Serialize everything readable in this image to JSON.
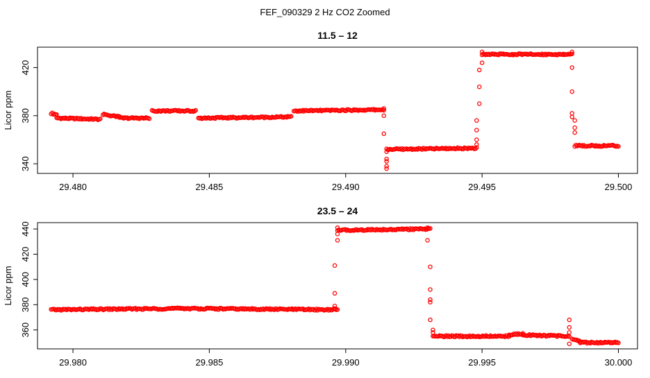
{
  "figure_title": "FEF_090329  2 Hz CO2 Zoomed",
  "colors": {
    "points": "#ff0000",
    "axis": "#000000",
    "background": "#ffffff"
  },
  "chart_data": [
    {
      "type": "scatter",
      "title": "11.5 – 12",
      "xlabel": "",
      "ylabel": "Licor ppm",
      "xlim": [
        29.4787,
        29.5007
      ],
      "ylim": [
        332,
        437
      ],
      "grid": false,
      "legend": "none",
      "xticks": [
        29.48,
        29.485,
        29.49,
        29.495,
        29.5
      ],
      "xtick_labels": [
        "29.480",
        "29.485",
        "29.490",
        "29.495",
        "29.500"
      ],
      "yticks": [
        340,
        380,
        420
      ],
      "ytick_labels": [
        "340",
        "380",
        "420"
      ],
      "segments": [
        {
          "x0": 29.4792,
          "x1": 29.4794,
          "y0": 382,
          "y1": 381
        },
        {
          "x0": 29.4794,
          "x1": 29.481,
          "y0": 378,
          "y1": 377
        },
        {
          "x0": 29.4811,
          "x1": 29.4817,
          "y0": 381,
          "y1": 379
        },
        {
          "x0": 29.4817,
          "x1": 29.4828,
          "y0": 378,
          "y1": 378
        },
        {
          "x0": 29.4829,
          "x1": 29.4845,
          "y0": 384,
          "y1": 384
        },
        {
          "x0": 29.4846,
          "x1": 29.488,
          "y0": 378,
          "y1": 379
        },
        {
          "x0": 29.4881,
          "x1": 29.4914,
          "y0": 384,
          "y1": 385
        },
        {
          "x0": 29.4915,
          "x1": 29.4948,
          "y0": 352,
          "y1": 353
        },
        {
          "x0": 29.495,
          "x1": 29.4983,
          "y0": 431,
          "y1": 431
        },
        {
          "x0": 29.4984,
          "x1": 29.5,
          "y0": 355,
          "y1": 355
        }
      ],
      "points": [
        [
          29.4914,
          386
        ],
        [
          29.4914,
          380
        ],
        [
          29.4914,
          365
        ],
        [
          29.4915,
          344
        ],
        [
          29.4915,
          336
        ],
        [
          29.4915,
          338
        ],
        [
          29.4915,
          342
        ],
        [
          29.4915,
          350
        ],
        [
          29.4948,
          356
        ],
        [
          29.4948,
          360
        ],
        [
          29.4948,
          368
        ],
        [
          29.4948,
          376
        ],
        [
          29.4949,
          390
        ],
        [
          29.4949,
          404
        ],
        [
          29.4949,
          418
        ],
        [
          29.495,
          424
        ],
        [
          29.495,
          433
        ],
        [
          29.4983,
          433
        ],
        [
          29.4983,
          420
        ],
        [
          29.4983,
          400
        ],
        [
          29.4983,
          382
        ],
        [
          29.4983,
          379
        ],
        [
          29.4984,
          376
        ],
        [
          29.4984,
          370
        ],
        [
          29.4984,
          366
        ]
      ]
    },
    {
      "type": "scatter",
      "title": "23.5 – 24",
      "xlabel": "",
      "ylabel": "Licor ppm",
      "xlim": [
        29.9787,
        30.0007
      ],
      "ylim": [
        345,
        445
      ],
      "grid": false,
      "legend": "none",
      "xticks": [
        29.98,
        29.985,
        29.99,
        29.995,
        30.0
      ],
      "xtick_labels": [
        "29.980",
        "29.985",
        "29.990",
        "29.995",
        "30.000"
      ],
      "yticks": [
        360,
        380,
        400,
        420,
        440
      ],
      "ytick_labels": [
        "360",
        "380",
        "400",
        "420",
        "440"
      ],
      "segments": [
        {
          "x0": 29.9792,
          "x1": 29.984,
          "y0": 376,
          "y1": 377
        },
        {
          "x0": 29.984,
          "x1": 29.9897,
          "y0": 377,
          "y1": 376
        },
        {
          "x0": 29.9897,
          "x1": 29.9931,
          "y0": 439,
          "y1": 440
        },
        {
          "x0": 29.9932,
          "x1": 29.996,
          "y0": 355,
          "y1": 355
        },
        {
          "x0": 29.996,
          "x1": 29.9965,
          "y0": 356,
          "y1": 357
        },
        {
          "x0": 29.9965,
          "x1": 29.9982,
          "y0": 356,
          "y1": 355
        },
        {
          "x0": 29.9983,
          "x1": 29.9986,
          "y0": 353,
          "y1": 351
        },
        {
          "x0": 29.9986,
          "x1": 30.0,
          "y0": 350,
          "y1": 350
        }
      ],
      "points": [
        [
          29.9896,
          377
        ],
        [
          29.9896,
          379
        ],
        [
          29.9896,
          389
        ],
        [
          29.9896,
          411
        ],
        [
          29.9897,
          431
        ],
        [
          29.9897,
          436
        ],
        [
          29.9897,
          441
        ],
        [
          29.993,
          441
        ],
        [
          29.993,
          431
        ],
        [
          29.9931,
          410
        ],
        [
          29.9931,
          392
        ],
        [
          29.9931,
          384
        ],
        [
          29.9931,
          382
        ],
        [
          29.9931,
          368
        ],
        [
          29.9932,
          360
        ],
        [
          29.9932,
          358
        ],
        [
          29.9982,
          368
        ],
        [
          29.9982,
          362
        ],
        [
          29.9982,
          358
        ],
        [
          29.9982,
          349
        ]
      ]
    }
  ]
}
